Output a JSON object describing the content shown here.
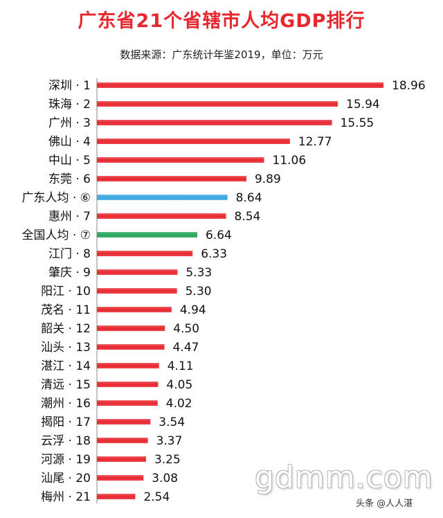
{
  "chart_data": {
    "type": "bar",
    "orientation": "horizontal",
    "title": "广东省21个省辖市人均GDP排行",
    "subtitle": "数据来源：广东统计年鉴2019，单位：万元",
    "categories": [
      "深圳 · 1",
      "珠海 · 2",
      "广州 · 3",
      "佛山 · 4",
      "中山 · 5",
      "东莞 · 6",
      "广东人均 · ⑥",
      "惠州 · 7",
      "全国人均 · ⑦",
      "江门 · 8",
      "肇庆 · 9",
      "阳江 · 10",
      "茂名 · 11",
      "韶关 · 12",
      "汕头 · 13",
      "湛江 · 14",
      "清远 · 15",
      "潮州 · 16",
      "揭阳 · 17",
      "云浮 · 18",
      "河源 · 19",
      "汕尾 · 20",
      "梅州 · 21"
    ],
    "values": [
      18.96,
      15.94,
      15.55,
      12.77,
      11.06,
      9.89,
      8.64,
      8.54,
      6.64,
      6.33,
      5.33,
      5.3,
      4.94,
      4.5,
      4.47,
      4.11,
      4.05,
      4.02,
      3.54,
      3.37,
      3.25,
      3.08,
      2.54
    ],
    "value_labels": [
      "18.96",
      "15.94",
      "15.55",
      "12.77",
      "11.06",
      "9.89",
      "8.64",
      "8.54",
      "6.64",
      "6.33",
      "5.33",
      "5.30",
      "4.94",
      "4.50",
      "4.47",
      "4.11",
      "4.05",
      "4.02",
      "3.54",
      "3.37",
      "3.25",
      "3.08",
      "2.54"
    ],
    "bar_colors": [
      "red",
      "red",
      "red",
      "red",
      "red",
      "red",
      "blue",
      "red",
      "green",
      "red",
      "red",
      "red",
      "red",
      "red",
      "red",
      "red",
      "red",
      "red",
      "red",
      "red",
      "red",
      "red",
      "red"
    ],
    "xlim": [
      0,
      18.96
    ],
    "grid": false,
    "colors": {
      "red": "#e8262e",
      "blue": "#3aa6e0",
      "green": "#27a35a"
    }
  },
  "watermark": "gdmm.com",
  "credit": "头条 @人人湛"
}
